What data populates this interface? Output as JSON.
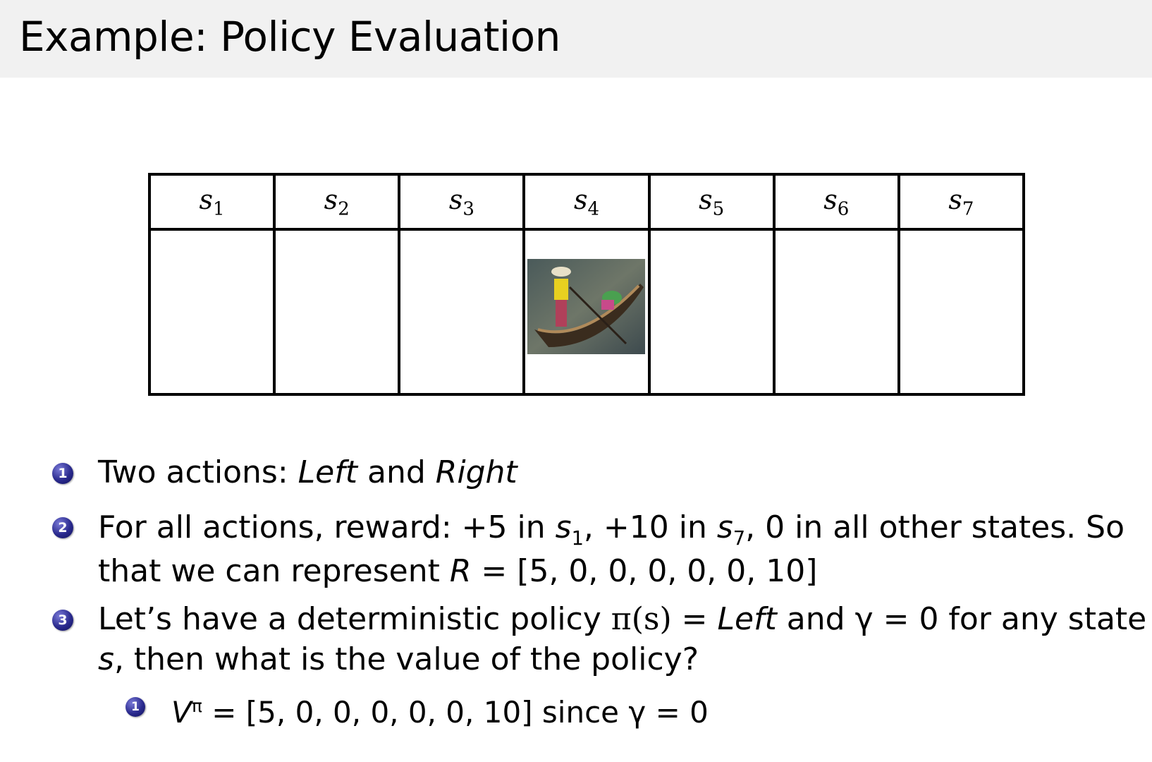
{
  "slide": {
    "title": "Example: Policy Evaluation"
  },
  "table": {
    "states": [
      {
        "base": "s",
        "sub": "1"
      },
      {
        "base": "s",
        "sub": "2"
      },
      {
        "base": "s",
        "sub": "3"
      },
      {
        "base": "s",
        "sub": "4"
      },
      {
        "base": "s",
        "sub": "5"
      },
      {
        "base": "s",
        "sub": "6"
      },
      {
        "base": "s",
        "sub": "7"
      }
    ],
    "agent_state": "s4"
  },
  "bullets": [
    {
      "num": "1",
      "t1": "Two actions: ",
      "a1": "Left",
      "t2": " and ",
      "a2": "Right"
    },
    {
      "num": "2",
      "t1": "For all actions, reward: +5 in ",
      "s1": "s",
      "s1sub": "1",
      "t2": ", +10 in ",
      "s7": "s",
      "s7sub": "7",
      "t3": ", 0 in all other states. So",
      "line2a": "that we can represent ",
      "R": "R",
      "line2b": " = [5, 0, 0, 0, 0, 0, 10]"
    },
    {
      "num": "3",
      "t1": "Let’s have a deterministic policy ",
      "pi": "π(s)",
      "t2": " = ",
      "left": "Left",
      "t3": " and γ = 0 for any state",
      "line2s": "s",
      "line2": ", then what is the value of the policy?"
    },
    {
      "num": "1",
      "V": "V",
      "sup": "π",
      "t1": " = [5, 0, 0, 0, 0, 0, 10]",
      "t2": " since ",
      "t3": "γ = 0"
    }
  ]
}
